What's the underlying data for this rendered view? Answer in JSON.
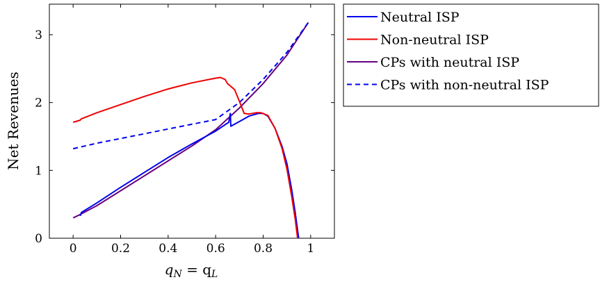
{
  "chart_data": {
    "type": "line",
    "title": "",
    "xlabel_main": "q",
    "xlabel_sub1": "N",
    "xlabel_eq": " = q",
    "xlabel_sub2": "L",
    "ylabel": "Net Revenues",
    "xlim": [
      -0.1,
      1.1
    ],
    "ylim": [
      0,
      3.45
    ],
    "xticks": [
      0,
      0.2,
      0.4,
      0.6,
      0.8,
      1
    ],
    "xtick_labels": [
      "0",
      "0.2",
      "0.4",
      "0.6",
      "0.8",
      "1"
    ],
    "yticks": [
      0,
      1,
      2,
      3
    ],
    "ytick_labels": [
      "0",
      "1",
      "2",
      "3"
    ],
    "grid": false,
    "legend_position": "outside-right-top",
    "series": [
      {
        "name": "Neutral ISP",
        "color": "#0000ee",
        "dash": "solid",
        "points": [
          [
            0.03,
            0.33
          ],
          [
            0.035,
            0.38
          ],
          [
            0.1,
            0.52
          ],
          [
            0.2,
            0.75
          ],
          [
            0.3,
            0.97
          ],
          [
            0.4,
            1.19
          ],
          [
            0.5,
            1.39
          ],
          [
            0.6,
            1.58
          ],
          [
            0.655,
            1.71
          ],
          [
            0.662,
            1.84
          ],
          [
            0.664,
            1.65
          ],
          [
            0.7,
            1.72
          ],
          [
            0.74,
            1.8
          ],
          [
            0.78,
            1.84
          ],
          [
            0.8,
            1.84
          ],
          [
            0.82,
            1.8
          ],
          [
            0.85,
            1.62
          ],
          [
            0.88,
            1.35
          ],
          [
            0.9,
            1.1
          ],
          [
            0.92,
            0.72
          ],
          [
            0.935,
            0.38
          ],
          [
            0.945,
            0.12
          ],
          [
            0.95,
            0.0
          ]
        ]
      },
      {
        "name": "Non-neutral ISP",
        "color": "#ee0000",
        "dash": "solid",
        "points": [
          [
            0,
            1.71
          ],
          [
            0.03,
            1.74
          ],
          [
            0.035,
            1.76
          ],
          [
            0.1,
            1.85
          ],
          [
            0.2,
            1.97
          ],
          [
            0.3,
            2.09
          ],
          [
            0.4,
            2.2
          ],
          [
            0.5,
            2.29
          ],
          [
            0.6,
            2.36
          ],
          [
            0.62,
            2.37
          ],
          [
            0.64,
            2.34
          ],
          [
            0.65,
            2.28
          ],
          [
            0.68,
            2.19
          ],
          [
            0.7,
            2.02
          ],
          [
            0.72,
            1.84
          ],
          [
            0.74,
            1.83
          ],
          [
            0.77,
            1.85
          ],
          [
            0.79,
            1.85
          ],
          [
            0.82,
            1.81
          ],
          [
            0.85,
            1.62
          ],
          [
            0.88,
            1.32
          ],
          [
            0.9,
            1.02
          ],
          [
            0.92,
            0.62
          ],
          [
            0.935,
            0.28
          ],
          [
            0.945,
            0.0
          ]
        ]
      },
      {
        "name": "CPs with neutral ISP",
        "color": "#660080",
        "dash": "solid",
        "points": [
          [
            0,
            0.3
          ],
          [
            0.03,
            0.35
          ],
          [
            0.1,
            0.48
          ],
          [
            0.2,
            0.7
          ],
          [
            0.3,
            0.92
          ],
          [
            0.4,
            1.14
          ],
          [
            0.5,
            1.36
          ],
          [
            0.6,
            1.6
          ],
          [
            0.7,
            1.92
          ],
          [
            0.8,
            2.28
          ],
          [
            0.9,
            2.7
          ],
          [
            0.99,
            3.18
          ]
        ]
      },
      {
        "name": "CPs with non-neutral ISP",
        "color": "#0000ee",
        "dash": "dashed",
        "points": [
          [
            0,
            1.32
          ],
          [
            0.1,
            1.4
          ],
          [
            0.2,
            1.47
          ],
          [
            0.3,
            1.54
          ],
          [
            0.4,
            1.61
          ],
          [
            0.5,
            1.68
          ],
          [
            0.6,
            1.75
          ],
          [
            0.7,
            2.0
          ],
          [
            0.8,
            2.34
          ],
          [
            0.9,
            2.74
          ],
          [
            0.99,
            3.18
          ]
        ]
      }
    ]
  }
}
